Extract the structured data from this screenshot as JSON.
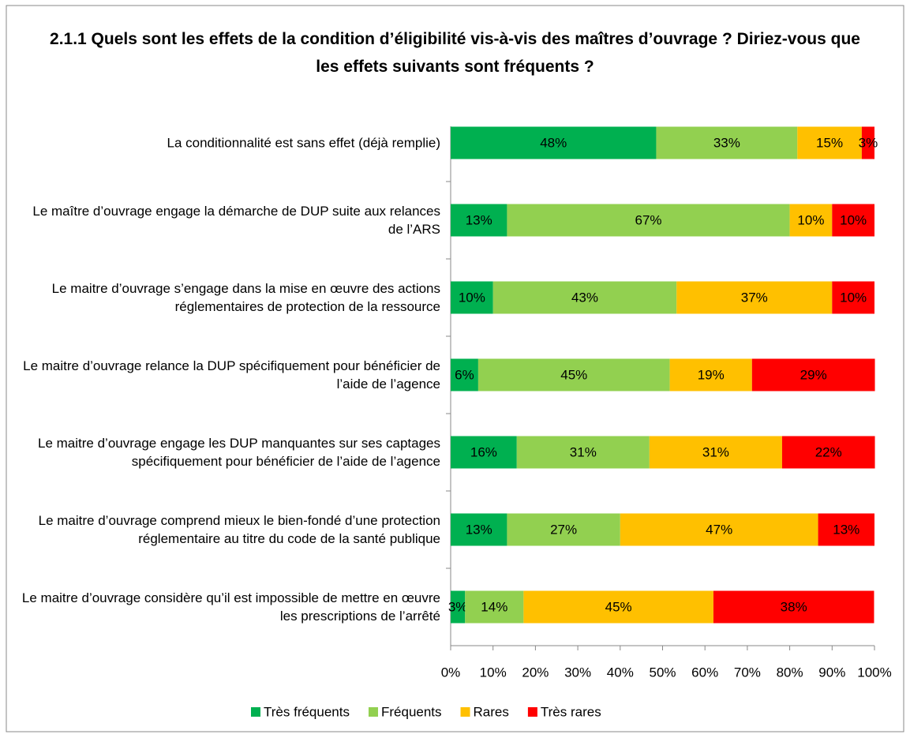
{
  "chart_data": {
    "type": "stacked-barh",
    "title": "2.1.1 Quels sont les effets de la condition d’éligibilité vis-à-vis des maîtres d’ouvrage ? Diriez-vous que les effets suivants sont fréquents ?",
    "categories": [
      "La conditionnalité est sans effet (déjà remplie)",
      "Le maître d’ouvrage engage la démarche de DUP suite aux relances de l’ARS",
      "Le maitre d’ouvrage s’engage dans la mise en œuvre des actions réglementaires de protection de la ressource",
      "Le maitre d’ouvrage relance la DUP spécifiquement pour bénéficier de l’aide de l’agence",
      "Le maitre d’ouvrage engage les DUP manquantes sur ses captages spécifiquement pour bénéficier de l’aide de l’agence",
      "Le maitre d’ouvrage comprend mieux le bien-fondé d’une protection réglementaire au titre du code de la santé publique",
      "Le maitre d’ouvrage considère qu’il est impossible de mettre en œuvre les prescriptions de l’arrêté"
    ],
    "series": [
      {
        "name": "Très fréquents",
        "color": "#00b050",
        "values": [
          48.5,
          13.3,
          10.0,
          6.5,
          15.6,
          13.3,
          3.4
        ],
        "value_labels": [
          "48%",
          "13%",
          "10%",
          "6%",
          "16%",
          "13%",
          "3%"
        ]
      },
      {
        "name": "Fréquents",
        "color": "#92d050",
        "values": [
          33.3,
          66.7,
          43.3,
          45.2,
          31.3,
          26.7,
          13.8
        ],
        "value_labels": [
          "33%",
          "67%",
          "43%",
          "45%",
          "31%",
          "27%",
          "14%"
        ]
      },
      {
        "name": "Rares",
        "color": "#ffc000",
        "values": [
          15.2,
          10.0,
          36.7,
          19.4,
          31.3,
          46.7,
          44.8
        ],
        "value_labels": [
          "15%",
          "10%",
          "37%",
          "19%",
          "31%",
          "47%",
          "45%"
        ]
      },
      {
        "name": "Très rares",
        "color": "#ff0000",
        "values": [
          3.0,
          10.0,
          10.0,
          29.0,
          21.9,
          13.3,
          37.9
        ],
        "value_labels": [
          "3%",
          "10%",
          "10%",
          "29%",
          "22%",
          "13%",
          "38%"
        ]
      }
    ],
    "xlim": [
      0,
      100
    ],
    "xticks": [
      {
        "value": 0,
        "label": "0%"
      },
      {
        "value": 10,
        "label": "10%"
      },
      {
        "value": 20,
        "label": "20%"
      },
      {
        "value": 30,
        "label": "30%"
      },
      {
        "value": 40,
        "label": "40%"
      },
      {
        "value": 50,
        "label": "50%"
      },
      {
        "value": 60,
        "label": "60%"
      },
      {
        "value": 70,
        "label": "70%"
      },
      {
        "value": 80,
        "label": "80%"
      },
      {
        "value": 90,
        "label": "90%"
      },
      {
        "value": 100,
        "label": "100%"
      }
    ],
    "legend": "bottom"
  }
}
